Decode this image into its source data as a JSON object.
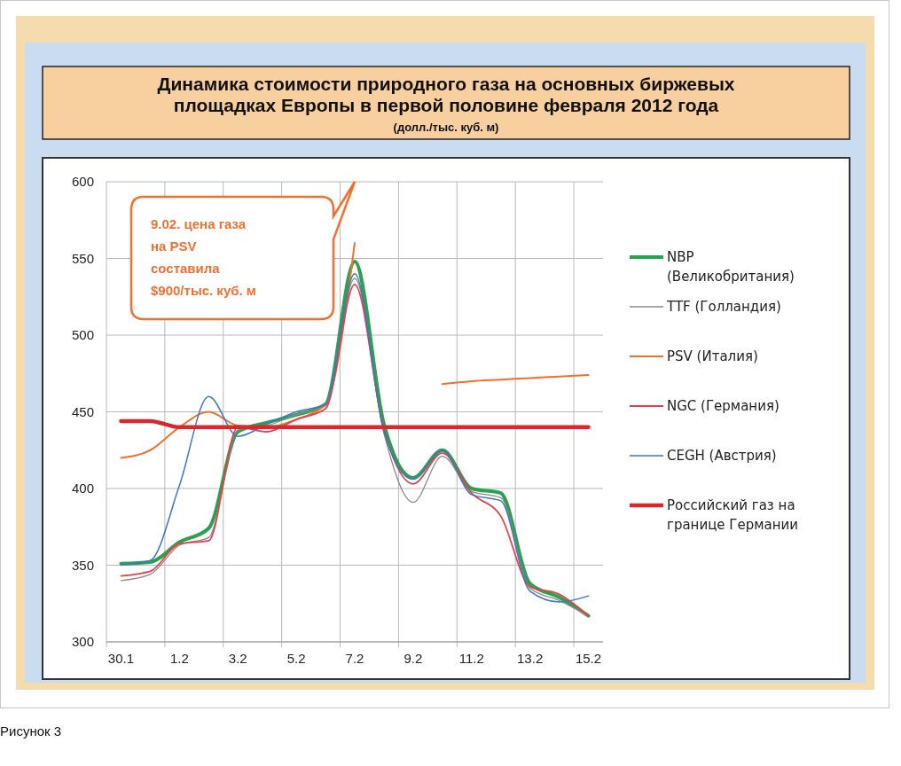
{
  "chart_data": {
    "type": "line",
    "title": "Динамика стоимости природного газа на основных биржевых площадках Европы в первой половине февраля 2012 года",
    "subtitle": "(долл./тыс. куб. м)",
    "categories": [
      "30.1",
      null,
      "1.2",
      null,
      "3.2",
      null,
      "5.2",
      null,
      "7.2",
      null,
      "9.2",
      null,
      "11.2",
      null,
      "13.2",
      null,
      "15.2"
    ],
    "series": [
      {
        "name": "NBP (Великобритания)",
        "color": "#2aa050",
        "values": [
          351,
          352,
          365,
          374,
          437,
          443,
          448,
          455,
          548,
          442,
          407,
          425,
          400,
          397,
          338,
          329,
          317
        ]
      },
      {
        "name": "TTF (Голландия)",
        "color": "#8a8a8a",
        "values": [
          340,
          344,
          363,
          368,
          438,
          441,
          448,
          454,
          537,
          436,
          391,
          421,
          398,
          394,
          335,
          327,
          317
        ]
      },
      {
        "name": "PSV (Италия)",
        "color": "#f07030",
        "values": [
          420,
          425,
          440,
          450,
          441,
          440,
          445,
          455,
          560,
          null,
          null,
          468,
          470,
          471,
          472,
          473,
          474
        ]
      },
      {
        "name": "NGC (Германия)",
        "color": "#e8404a",
        "values": [
          343,
          346,
          364,
          366,
          440,
          437,
          445,
          452,
          533,
          438,
          403,
          423,
          397,
          382,
          336,
          331,
          317
        ]
      },
      {
        "name": "CEGH (Австрия)",
        "color": "#3a78c0",
        "values": [
          350,
          353,
          402,
          460,
          434,
          442,
          450,
          455,
          540,
          437,
          406,
          425,
          396,
          392,
          333,
          326,
          330
        ]
      },
      {
        "name": "Российский газ на границе Германии",
        "color": "#d8282e",
        "values": [
          444,
          444,
          440,
          440,
          440,
          440,
          440,
          440,
          440,
          440,
          440,
          440,
          440,
          440,
          440,
          440,
          440
        ]
      }
    ],
    "ylim": [
      300,
      600
    ],
    "yticks": [
      300,
      350,
      400,
      450,
      500,
      550,
      600
    ],
    "grid": true,
    "legend": "right",
    "annotations": [
      "9.02. цена газа\nна PSV\nсоставила\n$900/тыс. куб. м",
      "Рисунок 3"
    ]
  }
}
